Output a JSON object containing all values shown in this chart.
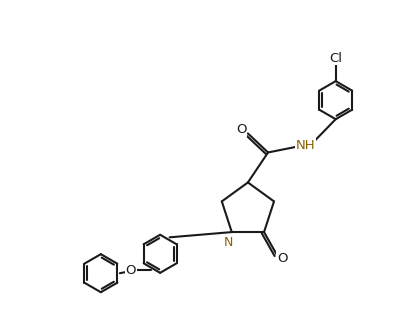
{
  "bg_color": "#ffffff",
  "line_color": "#1a1a1a",
  "heteroatom_color": "#8B6000",
  "bond_lw": 1.5,
  "font_size": 9,
  "fig_width": 4.19,
  "fig_height": 3.32,
  "dpi": 100,
  "xlim": [
    -5.5,
    5.0
  ],
  "ylim": [
    -4.5,
    4.5
  ]
}
